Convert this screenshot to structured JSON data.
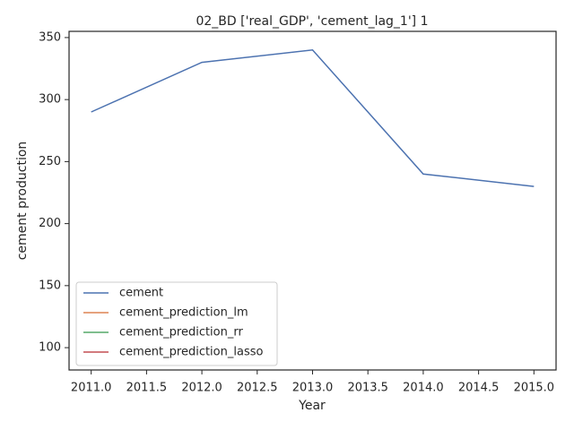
{
  "chart_data": {
    "type": "line",
    "title": "02_BD ['real_GDP', 'cement_lag_1'] 1",
    "x_label": "Year",
    "y_label": "cement production",
    "x": [
      2011,
      2012,
      2013,
      2014,
      2015
    ],
    "series": [
      {
        "name": "cement",
        "color": "#4c72b0",
        "values": [
          290,
          330,
          340,
          240,
          230
        ]
      },
      {
        "name": "cement_prediction_lm",
        "color": "#dd8452",
        "values": [
          null,
          null,
          null,
          null,
          null
        ]
      },
      {
        "name": "cement_prediction_rr",
        "color": "#55a868",
        "values": [
          null,
          null,
          null,
          null,
          null
        ]
      },
      {
        "name": "cement_prediction_lasso",
        "color": "#c44e52",
        "values": [
          null,
          null,
          null,
          null,
          null
        ]
      }
    ],
    "xlim": [
      2010.8,
      2015.2
    ],
    "ylim": [
      82,
      355
    ],
    "xticks": [
      {
        "value": 2011,
        "label": "2011.0"
      },
      2011.5,
      {
        "value": 2012,
        "label": "2012.0"
      },
      2012.5,
      {
        "value": 2013,
        "label": "2013.0"
      },
      2013.5,
      {
        "value": 2014,
        "label": "2014.0"
      },
      2014.5,
      {
        "value": 2015,
        "label": "2015.0"
      }
    ],
    "yticks": [
      100,
      150,
      200,
      250,
      300,
      350
    ],
    "grid": false,
    "legend": "lower left"
  }
}
